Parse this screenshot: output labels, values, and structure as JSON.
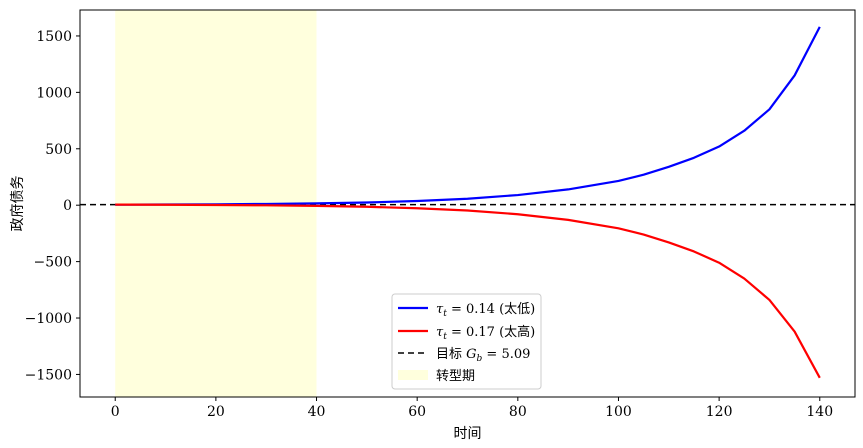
{
  "chart_data": {
    "type": "line",
    "xlabel": "时间",
    "ylabel": "政府债务",
    "xlim": [
      -7,
      147
    ],
    "ylim": [
      -1700,
      1730
    ],
    "xticks": [
      0,
      20,
      40,
      60,
      80,
      100,
      120,
      140
    ],
    "yticks": [
      -1500,
      -1000,
      -500,
      0,
      500,
      1000,
      1500
    ],
    "ytick_labels": [
      "−1500",
      "−1000",
      "−500",
      "0",
      "500",
      "1000",
      "1500"
    ],
    "legend_position": "lower-center",
    "series": [
      {
        "name": "τ_t = 0.14 (太低)",
        "legend_main": "τ",
        "legend_sub": "t",
        "legend_rest": " = 0.14 (太低)",
        "color": "#0000ff",
        "style": "solid",
        "x": [
          0,
          10,
          20,
          30,
          40,
          50,
          60,
          70,
          80,
          90,
          100,
          105,
          110,
          115,
          120,
          125,
          130,
          135,
          140
        ],
        "y": [
          5,
          6,
          8,
          11,
          16,
          24,
          37,
          57,
          90,
          140,
          215,
          270,
          340,
          420,
          520,
          660,
          850,
          1150,
          1580
        ]
      },
      {
        "name": "τ_t = 0.17 (太高)",
        "legend_main": "τ",
        "legend_sub": "t",
        "legend_rest": " = 0.17 (太高)",
        "color": "#ff0000",
        "style": "solid",
        "x": [
          0,
          10,
          20,
          30,
          40,
          50,
          60,
          70,
          80,
          90,
          100,
          105,
          110,
          115,
          120,
          125,
          130,
          135,
          140
        ],
        "y": [
          5,
          4,
          2,
          -1,
          -6,
          -14,
          -27,
          -47,
          -80,
          -130,
          -205,
          -260,
          -330,
          -410,
          -510,
          -650,
          -840,
          -1120,
          -1530
        ]
      }
    ],
    "reference_line": {
      "name": "目标 G_b = 5.09",
      "legend_prefix": "目标 ",
      "legend_main": "G",
      "legend_sub": "b",
      "legend_rest": " = 5.09",
      "y": 5.09,
      "color": "#000000",
      "style": "dashed"
    },
    "shaded_region": {
      "name": "转型期",
      "legend_label": "转型期",
      "x_start": 0,
      "x_end": 40,
      "color": "#ffffdd"
    }
  }
}
